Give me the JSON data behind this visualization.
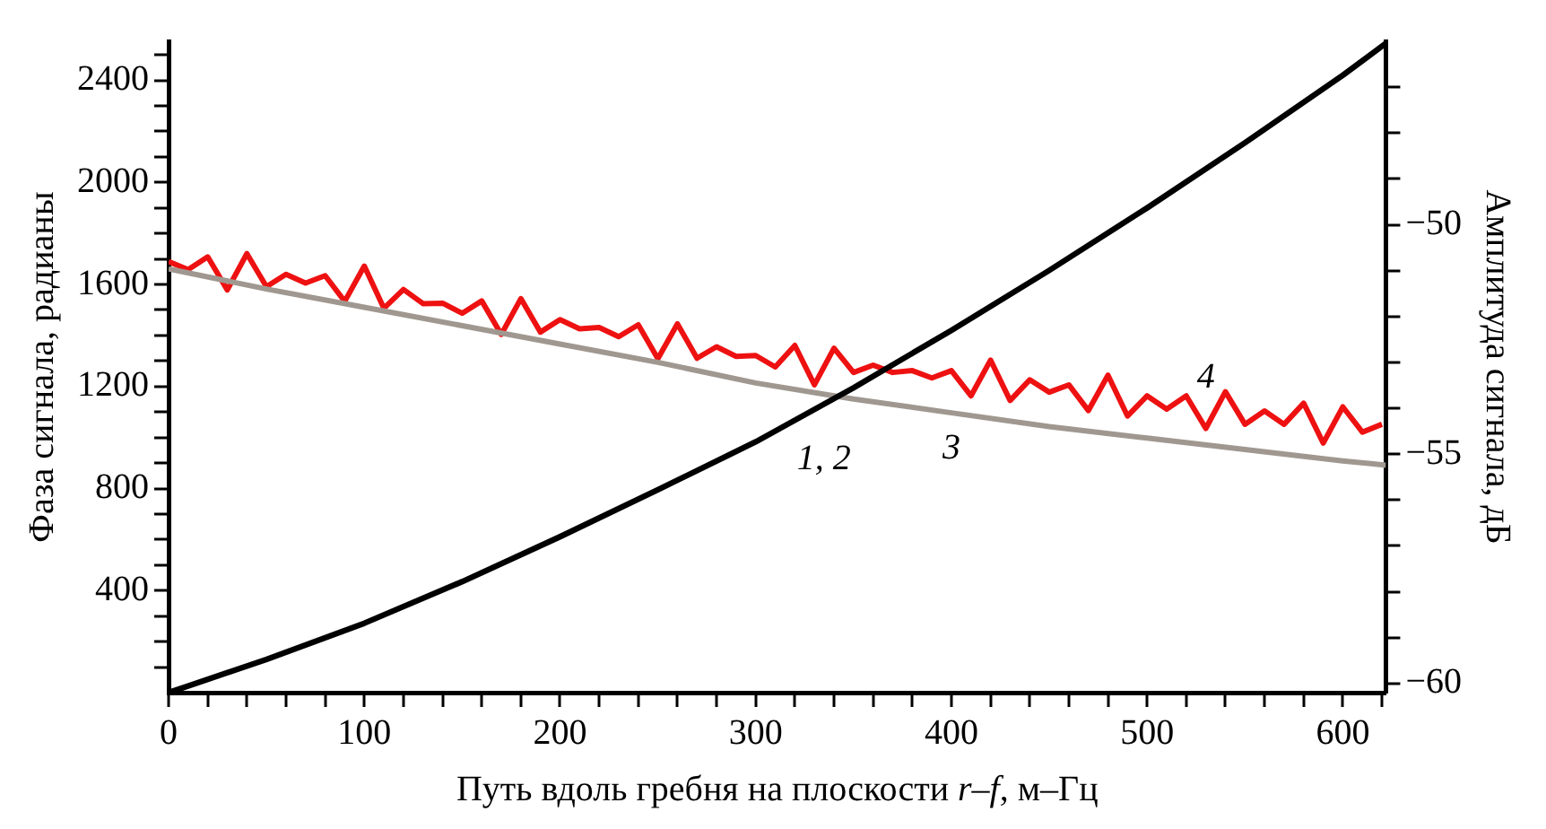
{
  "chart_data": {
    "type": "line",
    "xlabel": "Путь вдоль гребня на плоскости r–f, м–Гц",
    "ylabel": "Фаза сигнала, радианы",
    "y2label": "Амплитуда сигнала, дБ",
    "xlim": [
      0,
      622
    ],
    "ylim": [
      0,
      2553
    ],
    "y2lim": [
      -60.2,
      -46.0
    ],
    "xticks": [
      0,
      {
        "value": 20,
        "label": null
      },
      {
        "value": 40,
        "label": null
      },
      {
        "value": 60,
        "label": null
      },
      {
        "value": 80,
        "label": null
      },
      100,
      {
        "value": 120,
        "label": null
      },
      {
        "value": 140,
        "label": null
      },
      {
        "value": 160,
        "label": null
      },
      {
        "value": 180,
        "label": null
      },
      200,
      {
        "value": 220,
        "label": null
      },
      {
        "value": 240,
        "label": null
      },
      {
        "value": 260,
        "label": null
      },
      {
        "value": 280,
        "label": null
      },
      300,
      {
        "value": 320,
        "label": null
      },
      {
        "value": 340,
        "label": null
      },
      {
        "value": 360,
        "label": null
      },
      {
        "value": 380,
        "label": null
      },
      400,
      {
        "value": 420,
        "label": null
      },
      {
        "value": 440,
        "label": null
      },
      {
        "value": 460,
        "label": null
      },
      {
        "value": 480,
        "label": null
      },
      500,
      {
        "value": 520,
        "label": null
      },
      {
        "value": 540,
        "label": null
      },
      {
        "value": 560,
        "label": null
      },
      {
        "value": 580,
        "label": null
      },
      600,
      {
        "value": 620,
        "label": null
      }
    ],
    "yticks": [
      {
        "value": 100,
        "label": null
      },
      {
        "value": 200,
        "label": null
      },
      {
        "value": 300,
        "label": null
      },
      400,
      {
        "value": 500,
        "label": null
      },
      {
        "value": 600,
        "label": null
      },
      {
        "value": 700,
        "label": null
      },
      800,
      {
        "value": 900,
        "label": null
      },
      {
        "value": 1000,
        "label": null
      },
      {
        "value": 1100,
        "label": null
      },
      1200,
      {
        "value": 1300,
        "label": null
      },
      {
        "value": 1400,
        "label": null
      },
      {
        "value": 1500,
        "label": null
      },
      1600,
      {
        "value": 1700,
        "label": null
      },
      {
        "value": 1800,
        "label": null
      },
      {
        "value": 1900,
        "label": null
      },
      2000,
      {
        "value": 2100,
        "label": null
      },
      {
        "value": 2200,
        "label": null
      },
      {
        "value": 2300,
        "label": null
      },
      2400,
      {
        "value": 2500,
        "label": null
      }
    ],
    "y2ticks": [
      {
        "value": -60,
        "label": "−60"
      },
      {
        "value": -59,
        "label": null
      },
      {
        "value": -58,
        "label": null
      },
      {
        "value": -57,
        "label": null
      },
      {
        "value": -56,
        "label": null
      },
      {
        "value": -55,
        "label": "−55"
      },
      {
        "value": -54,
        "label": null
      },
      {
        "value": -53,
        "label": null
      },
      {
        "value": -52,
        "label": null
      },
      {
        "value": -51,
        "label": null
      },
      {
        "value": -50,
        "label": "−50"
      },
      {
        "value": -49,
        "label": null
      },
      {
        "value": -48,
        "label": null
      },
      {
        "value": -47,
        "label": null
      }
    ],
    "grid": false,
    "legend": false,
    "marker": "none",
    "series": [
      {
        "name": "1, 2",
        "color": "#000000",
        "x": [
          0,
          50,
          100,
          150,
          200,
          250,
          300,
          350,
          400,
          450,
          500,
          550,
          600,
          622
        ],
        "values": [
          0,
          130,
          272,
          435,
          611,
          795,
          983,
          1195,
          1420,
          1655,
          1900,
          2155,
          2420,
          2545
        ]
      },
      {
        "name": "3",
        "color": "#a09890",
        "axis": "y2",
        "x": [
          0,
          50,
          100,
          150,
          200,
          250,
          300,
          350,
          400,
          450,
          500,
          550,
          600,
          622
        ],
        "values": [
          -50.96,
          -51.4,
          -51.8,
          -52.2,
          -52.6,
          -53.0,
          -53.45,
          -53.8,
          -54.1,
          -54.4,
          -54.65,
          -54.9,
          -55.15,
          -55.24
        ]
      },
      {
        "name": "4",
        "color": "#ee1111",
        "axis": "y2",
        "x": [
          0,
          10,
          20,
          30,
          40,
          50,
          60,
          70,
          80,
          90,
          100,
          110,
          120,
          130,
          140,
          150,
          160,
          170,
          180,
          190,
          200,
          210,
          220,
          230,
          240,
          250,
          260,
          270,
          280,
          290,
          300,
          310,
          320,
          330,
          340,
          350,
          360,
          370,
          380,
          390,
          400,
          410,
          420,
          430,
          440,
          450,
          460,
          470,
          480,
          490,
          500,
          510,
          520,
          530,
          540,
          550,
          560,
          570,
          580,
          590,
          600,
          610,
          620
        ],
        "values": [
          -50.8,
          -50.98,
          -50.7,
          -51.42,
          -50.63,
          -51.35,
          -51.08,
          -51.27,
          -51.11,
          -51.67,
          -50.9,
          -51.82,
          -51.41,
          -51.72,
          -51.71,
          -51.93,
          -51.66,
          -52.39,
          -51.61,
          -52.34,
          -52.07,
          -52.27,
          -52.24,
          -52.44,
          -52.18,
          -52.92,
          -52.16,
          -52.91,
          -52.66,
          -52.87,
          -52.85,
          -53.1,
          -52.63,
          -53.49,
          -52.69,
          -53.22,
          -53.06,
          -53.22,
          -53.18,
          -53.34,
          -53.18,
          -53.73,
          -52.95,
          -53.83,
          -53.38,
          -53.65,
          -53.49,
          -54.05,
          -53.28,
          -54.17,
          -53.73,
          -54.02,
          -53.73,
          -54.44,
          -53.64,
          -54.35,
          -54.06,
          -54.35,
          -53.89,
          -54.76,
          -53.97,
          -54.52,
          -54.35
        ]
      }
    ]
  }
}
